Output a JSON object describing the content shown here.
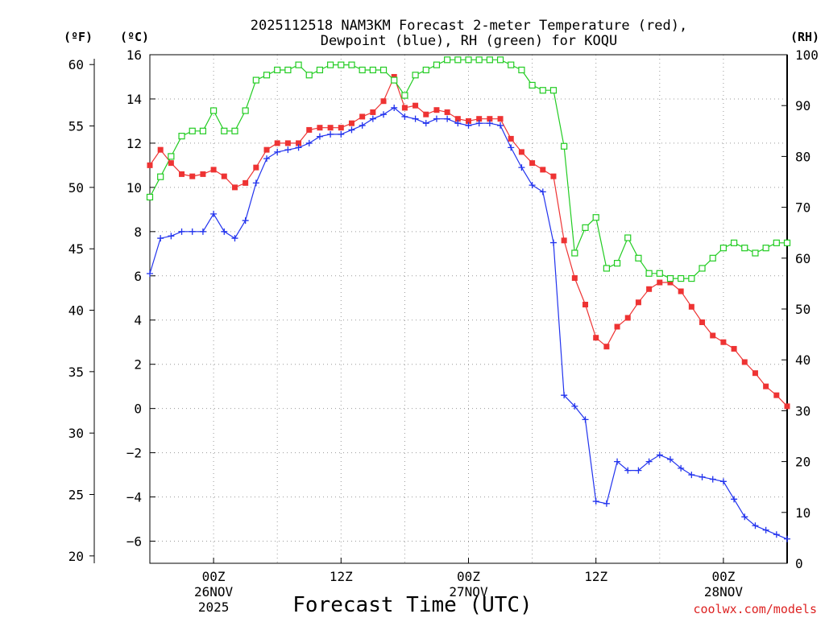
{
  "chart_data": {
    "type": "line",
    "title_line1": "2025112518 NAM3KM Forecast 2-meter Temperature (red),",
    "title_line2": "Dewpoint (blue), RH (green) for KOQU",
    "xlabel": "Forecast Time (UTC)",
    "unit_f": "(ºF)",
    "unit_c": "(ºC)",
    "unit_rh": "(RH)",
    "credit": "coolwx.com/models",
    "x_range_hours": [
      -6,
      54
    ],
    "celsius_range": [
      -7,
      16
    ],
    "celsius_ticks": [
      "16",
      "14",
      "12",
      "10",
      "8",
      "6",
      "4",
      "2",
      "0",
      "−2",
      "−4",
      "−6"
    ],
    "celsius_values": [
      16,
      14,
      12,
      10,
      8,
      6,
      4,
      2,
      0,
      -2,
      -4,
      -6
    ],
    "fahrenheit_ticks": [
      "60",
      "55",
      "50",
      "45",
      "40",
      "35",
      "30",
      "25",
      "20"
    ],
    "fahrenheit_values": [
      60,
      55,
      50,
      45,
      40,
      35,
      30,
      25,
      20
    ],
    "rh_ticks": [
      "100",
      "90",
      "80",
      "70",
      "60",
      "50",
      "40",
      "30",
      "20",
      "10",
      "0"
    ],
    "rh_values": [
      100,
      90,
      80,
      70,
      60,
      50,
      40,
      30,
      20,
      10,
      0
    ],
    "x_ticks": [
      {
        "hour": 0,
        "line1": "00Z",
        "line2": "26NOV",
        "line3": "2025"
      },
      {
        "hour": 12,
        "line1": "12Z",
        "line2": "",
        "line3": ""
      },
      {
        "hour": 24,
        "line1": "00Z",
        "line2": "27NOV",
        "line3": ""
      },
      {
        "hour": 36,
        "line1": "12Z",
        "line2": "",
        "line3": ""
      },
      {
        "hour": 48,
        "line1": "00Z",
        "line2": "28NOV",
        "line3": ""
      }
    ],
    "hours": [
      -6,
      -5,
      -4,
      -3,
      -2,
      -1,
      0,
      1,
      2,
      3,
      4,
      5,
      6,
      7,
      8,
      9,
      10,
      11,
      12,
      13,
      14,
      15,
      16,
      17,
      18,
      19,
      20,
      21,
      22,
      23,
      24,
      25,
      26,
      27,
      28,
      29,
      30,
      31,
      32,
      33,
      34,
      35,
      36,
      37,
      38,
      39,
      40,
      41,
      42,
      43,
      44,
      45,
      46,
      47,
      48,
      49,
      50,
      51,
      52,
      53,
      54
    ],
    "series": [
      {
        "name": "Temperature",
        "unit": "°C",
        "color": "#ee3333",
        "values": [
          11.0,
          11.7,
          11.1,
          10.6,
          10.5,
          10.6,
          10.8,
          10.5,
          10.0,
          10.2,
          10.9,
          11.7,
          12.0,
          12.0,
          12.0,
          12.6,
          12.7,
          12.7,
          12.7,
          12.9,
          13.2,
          13.4,
          13.9,
          15.0,
          13.6,
          13.7,
          13.3,
          13.5,
          13.4,
          13.1,
          13.0,
          13.1,
          13.1,
          13.1,
          12.2,
          11.6,
          11.1,
          10.8,
          10.5,
          7.6,
          5.9,
          4.7,
          3.2,
          2.8,
          3.7,
          4.1,
          4.8,
          5.4,
          5.7,
          5.7,
          5.3,
          4.6,
          3.9,
          3.3,
          3.0,
          2.7,
          2.1,
          1.6,
          1.0,
          0.6,
          0.1
        ]
      },
      {
        "name": "Dewpoint",
        "unit": "°C",
        "color": "#2233ee",
        "values": [
          6.1,
          7.7,
          7.8,
          8.0,
          8.0,
          8.0,
          8.8,
          8.0,
          7.7,
          8.5,
          10.2,
          11.3,
          11.6,
          11.7,
          11.8,
          12.0,
          12.3,
          12.4,
          12.4,
          12.6,
          12.8,
          13.1,
          13.3,
          13.6,
          13.2,
          13.1,
          12.9,
          13.1,
          13.1,
          12.9,
          12.8,
          12.9,
          12.9,
          12.8,
          11.8,
          10.9,
          10.1,
          9.8,
          7.5,
          0.6,
          0.1,
          -0.5,
          -4.2,
          -4.3,
          -2.4,
          -2.8,
          -2.8,
          -2.4,
          -2.1,
          -2.3,
          -2.7,
          -3.0,
          -3.1,
          -3.2,
          -3.3,
          -4.1,
          -4.9,
          -5.3,
          -5.5,
          -5.7,
          -5.9
        ]
      },
      {
        "name": "RH",
        "unit": "%",
        "color": "#22cc22",
        "axis": "right",
        "values": [
          72,
          76,
          80,
          84,
          85,
          85,
          89,
          85,
          85,
          89,
          95,
          96,
          97,
          97,
          98,
          96,
          97,
          98,
          98,
          98,
          97,
          97,
          97,
          95,
          92,
          96,
          97,
          98,
          99,
          99,
          99,
          99,
          99,
          99,
          98,
          97,
          94,
          93,
          93,
          82,
          61,
          66,
          68,
          58,
          59,
          64,
          60,
          57,
          57,
          56,
          56,
          56,
          58,
          60,
          62,
          63,
          62,
          61,
          62,
          63,
          63
        ]
      }
    ]
  }
}
